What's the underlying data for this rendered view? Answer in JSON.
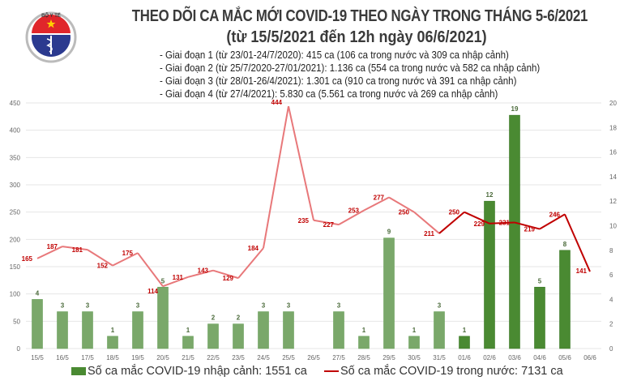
{
  "header": {
    "title": "THEO DÕI CA MẮC MỚI COVID-19 THEO NGÀY TRONG THÁNG 5-6/2021",
    "subtitle": "(từ 15/5/2021 đến 12h ngày 06/6/2021)",
    "notes": [
      "- Giai đoạn 1 (từ 23/01-24/7/2020): 415 ca (106 ca trong nước và 309 ca nhập cảnh)",
      "- Giai đoạn 2 (từ 25/7/2020-27/01/2021): 1.136 ca (554 ca trong nước và 582 ca nhập cảnh)",
      "- Giai đoạn 3 (từ 28/01-26/4/2021): 1.301 ca (910 ca trong nước và 391 ca nhập cảnh)",
      "- Giai đoạn 4 (từ 27/4/2021): 5.830 ca (5.561 ca trong nước và 269 ca nhập cảnh)"
    ]
  },
  "logo": {
    "top_text": "BỘ Y TẾ",
    "bottom_text": "MINISTRY OF HEALTH"
  },
  "chart_data": {
    "type": "bar+line",
    "categories": [
      "15/5",
      "16/5",
      "17/5",
      "18/5",
      "19/5",
      "20/5",
      "21/5",
      "22/5",
      "23/5",
      "24/5",
      "25/5",
      "26/5",
      "27/5",
      "28/5",
      "29/5",
      "30/5",
      "31/5",
      "01/6",
      "02/6",
      "03/6",
      "04/6",
      "05/6",
      "06/6"
    ],
    "series": [
      {
        "name": "Số ca mắc COVID-19 nhập cảnh: 1551 ca",
        "type": "bar",
        "axis": "right",
        "values": [
          4,
          3,
          3,
          1,
          3,
          5,
          1,
          2,
          2,
          3,
          3,
          0,
          3,
          1,
          9,
          1,
          3,
          1,
          12,
          19,
          5,
          8,
          0
        ],
        "labels": [
          "4",
          "3",
          "3",
          "1",
          "3",
          "5",
          "1",
          "2",
          "2",
          "3",
          "3",
          "",
          "3",
          "1",
          "9",
          "1",
          "3",
          "1",
          "12",
          "19",
          "5",
          "8",
          ""
        ],
        "color": "#7aa86a",
        "color_recent": "#4a8a32"
      },
      {
        "name": "Số ca mắc COVID-19 trong nước: 7131 ca",
        "type": "line",
        "axis": "left",
        "values": [
          165,
          187,
          181,
          152,
          175,
          114,
          131,
          143,
          129,
          184,
          444,
          235,
          227,
          253,
          277,
          250,
          211,
          250,
          229,
          231,
          219,
          246,
          141
        ],
        "color": "#e8787a",
        "color_recent": "#c00000"
      }
    ],
    "left_axis": {
      "range": [
        0,
        450
      ],
      "ticks": [
        "0",
        "50",
        "100",
        "150",
        "200",
        "250",
        "300",
        "350",
        "400",
        "450"
      ]
    },
    "right_axis": {
      "range": [
        0,
        20
      ],
      "ticks": [
        "0",
        "2",
        "4",
        "6",
        "8",
        "10",
        "12",
        "14",
        "16",
        "18",
        "20"
      ]
    },
    "grid": true,
    "legend_position": "bottom"
  }
}
